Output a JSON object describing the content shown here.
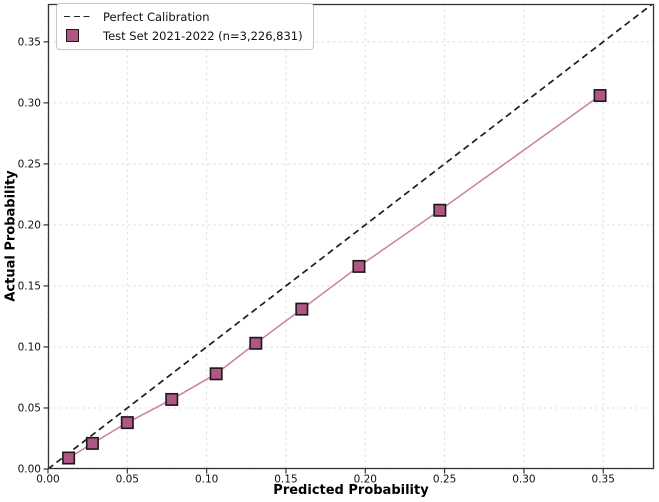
{
  "figure": {
    "background": "#ffffff",
    "spine_color": "#333333",
    "grid_color": "#dedede",
    "tick_color": "#333333"
  },
  "legend": {
    "position": "upper-left",
    "entries": [
      {
        "type": "dashed-line",
        "label": "Perfect Calibration",
        "color": "#222222"
      },
      {
        "type": "square-marker",
        "label": "Test Set 2021-2022 (n=3,226,831)",
        "fill": "#af5682",
        "edge": "#1a1a1a"
      }
    ]
  },
  "chart_data": {
    "type": "line",
    "title": "",
    "xlabel": "Predicted Probability",
    "ylabel": "Actual Probability",
    "xlim": [
      0,
      0.382
    ],
    "ylim": [
      0,
      0.381
    ],
    "xticks": [
      0.0,
      0.05,
      0.1,
      0.15,
      0.2,
      0.25,
      0.3,
      0.35
    ],
    "yticks": [
      0.0,
      0.05,
      0.1,
      0.15,
      0.2,
      0.25,
      0.3,
      0.35
    ],
    "tick_format_decimals": 2,
    "grid": true,
    "legend_position": "upper-left",
    "series": [
      {
        "name": "Perfect Calibration",
        "style": "dashed",
        "color": "#1f1f1f",
        "x": [
          0,
          0.382
        ],
        "y": [
          0,
          0.382
        ]
      },
      {
        "name": "Test Set 2021-2022 (n=3,226,831)",
        "style": "line-with-square-markers",
        "line_color": "#cd84a5",
        "marker_fill": "#af5682",
        "marker_edge": "#1a1a1a",
        "x": [
          0.013,
          0.028,
          0.05,
          0.078,
          0.106,
          0.131,
          0.16,
          0.196,
          0.247,
          0.348
        ],
        "y": [
          0.009,
          0.021,
          0.038,
          0.057,
          0.078,
          0.103,
          0.131,
          0.166,
          0.212,
          0.306
        ]
      }
    ]
  }
}
